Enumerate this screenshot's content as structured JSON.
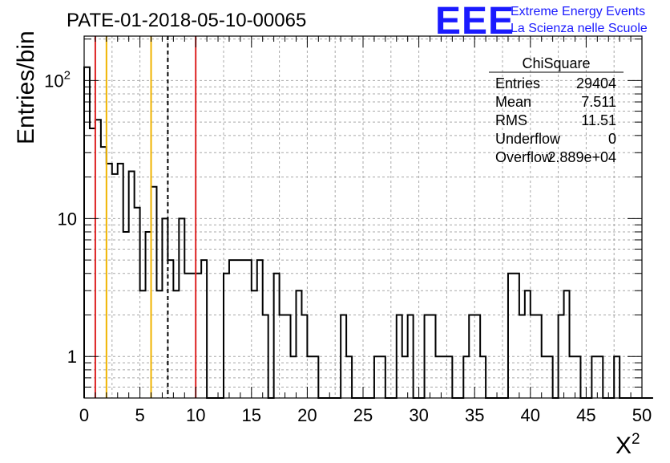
{
  "chart_data": {
    "type": "bar",
    "title": "PATE-01-2018-05-10-00065",
    "xlabel": "X",
    "xlabel_sup": "2",
    "ylabel": "Entries/bin",
    "xlim": [
      0,
      50
    ],
    "ylim": [
      0.5,
      210
    ],
    "yscale": "log",
    "grid": true,
    "bin_width": 0.5,
    "x_ticks": [
      "0",
      "5",
      "10",
      "15",
      "20",
      "25",
      "30",
      "35",
      "40",
      "45",
      "50"
    ],
    "y_ticks": [
      {
        "value": 1,
        "label": "1"
      },
      {
        "value": 10,
        "label": "10"
      },
      {
        "value": 100,
        "label": "10",
        "sup": "2"
      }
    ],
    "values": [
      125,
      45,
      52,
      33,
      25,
      21,
      25,
      8,
      22,
      12,
      3,
      8,
      17,
      3,
      10,
      5,
      3,
      10,
      4,
      4,
      4,
      5,
      0,
      0,
      0,
      4,
      5,
      5,
      5,
      5,
      3,
      5,
      2,
      0,
      4,
      2,
      2,
      1,
      3,
      2,
      1,
      1,
      0,
      0,
      0,
      0,
      2,
      1,
      0,
      0,
      0,
      0,
      1,
      1,
      0,
      0,
      2,
      1,
      2,
      0,
      0,
      2,
      2,
      1,
      1,
      1,
      0,
      0,
      1,
      2,
      2,
      1,
      0,
      0,
      0,
      0,
      4,
      4,
      2,
      3,
      2,
      2,
      1,
      1,
      0,
      2,
      3,
      1,
      1,
      0,
      0,
      1,
      1,
      0,
      0,
      1,
      0,
      0,
      0,
      0,
      0,
      0,
      0
    ],
    "vertical_lines": [
      {
        "x": 1,
        "color": "#dd2222",
        "style": "solid"
      },
      {
        "x": 2,
        "color": "#f0b400",
        "style": "solid"
      },
      {
        "x": 6,
        "color": "#f0b400",
        "style": "solid"
      },
      {
        "x": 7.5,
        "color": "#000000",
        "style": "dashed"
      },
      {
        "x": 10,
        "color": "#dd2222",
        "style": "solid"
      }
    ],
    "stats_box": {
      "title": "ChiSquare",
      "rows": [
        {
          "label": "Entries",
          "value": "29404"
        },
        {
          "label": "Mean",
          "value": "7.511"
        },
        {
          "label": "RMS",
          "value": "11.51"
        },
        {
          "label": "Underflow",
          "value": "0"
        },
        {
          "label": "Overflow",
          "value": "2.889e+04"
        }
      ]
    }
  },
  "logo": {
    "mark": "EEE",
    "line1": "Extreme Energy Events",
    "line2": "La Scienza nelle Scuole",
    "color": "#1a1aff"
  }
}
